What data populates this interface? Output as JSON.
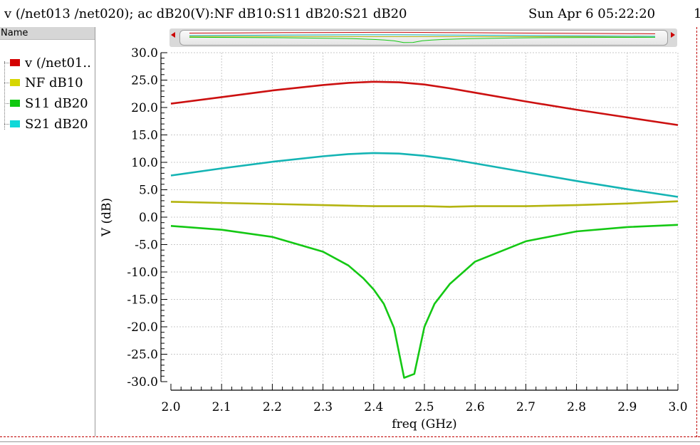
{
  "window": {
    "title": "v (/net013 /net020); ac dB20(V):NF dB10:S11 dB20:S21 dB20",
    "date": "Sun Apr 6 05:22:20",
    "page": "1"
  },
  "legend": {
    "header": "Name",
    "items": [
      {
        "label": "v (/net01..",
        "color": "#d40000"
      },
      {
        "label": "NF dB10",
        "color": "#d6d600"
      },
      {
        "label": "S11 dB20",
        "color": "#10c810"
      },
      {
        "label": "S21 dB20",
        "color": "#10d8d8"
      }
    ]
  },
  "chart_data": {
    "type": "line",
    "xlabel": "freq (GHz)",
    "ylabel": "V (dB)",
    "xlim": [
      2.0,
      3.0
    ],
    "ylim": [
      -30.0,
      30.0
    ],
    "x_ticks": [
      "2.0",
      "2.1",
      "2.2",
      "2.3",
      "2.4",
      "2.5",
      "2.6",
      "2.7",
      "2.8",
      "2.9",
      "3.0"
    ],
    "y_ticks": [
      "30.0",
      "25.0",
      "20.0",
      "15.0",
      "10.0",
      "5.0",
      "0.0",
      "-5.0",
      "-10.0",
      "-15.0",
      "-20.0",
      "-25.0",
      "-30.0"
    ],
    "grid": true,
    "legend_position": "left panel",
    "series": [
      {
        "name": "v (/net01..",
        "color": "#cc1010",
        "x": [
          2.0,
          2.1,
          2.2,
          2.3,
          2.35,
          2.4,
          2.45,
          2.5,
          2.55,
          2.6,
          2.7,
          2.8,
          2.9,
          3.0
        ],
        "y": [
          20.7,
          21.9,
          23.1,
          24.1,
          24.5,
          24.7,
          24.6,
          24.2,
          23.5,
          22.7,
          21.1,
          19.6,
          18.2,
          16.8
        ]
      },
      {
        "name": "NF dB10",
        "color": "#b4b410",
        "x": [
          2.0,
          2.1,
          2.2,
          2.3,
          2.4,
          2.5,
          2.55,
          2.6,
          2.7,
          2.8,
          2.9,
          3.0
        ],
        "y": [
          2.8,
          2.6,
          2.4,
          2.2,
          2.0,
          2.0,
          1.9,
          2.0,
          2.0,
          2.2,
          2.5,
          2.9
        ]
      },
      {
        "name": "S11 dB20",
        "color": "#14c814",
        "x": [
          2.0,
          2.1,
          2.2,
          2.3,
          2.35,
          2.38,
          2.4,
          2.42,
          2.44,
          2.46,
          2.48,
          2.5,
          2.52,
          2.55,
          2.6,
          2.7,
          2.8,
          2.9,
          3.0
        ],
        "y": [
          -1.6,
          -2.3,
          -3.6,
          -6.3,
          -8.8,
          -11.2,
          -13.2,
          -15.8,
          -20.2,
          -29.3,
          -28.6,
          -20.0,
          -15.8,
          -12.2,
          -8.1,
          -4.4,
          -2.6,
          -1.8,
          -1.4
        ]
      },
      {
        "name": "S21 dB20",
        "color": "#14b4b4",
        "x": [
          2.0,
          2.1,
          2.2,
          2.3,
          2.35,
          2.4,
          2.45,
          2.5,
          2.55,
          2.6,
          2.7,
          2.8,
          2.9,
          3.0
        ],
        "y": [
          7.6,
          8.9,
          10.1,
          11.1,
          11.5,
          11.7,
          11.6,
          11.2,
          10.6,
          9.8,
          8.2,
          6.6,
          5.1,
          3.7
        ]
      }
    ]
  }
}
